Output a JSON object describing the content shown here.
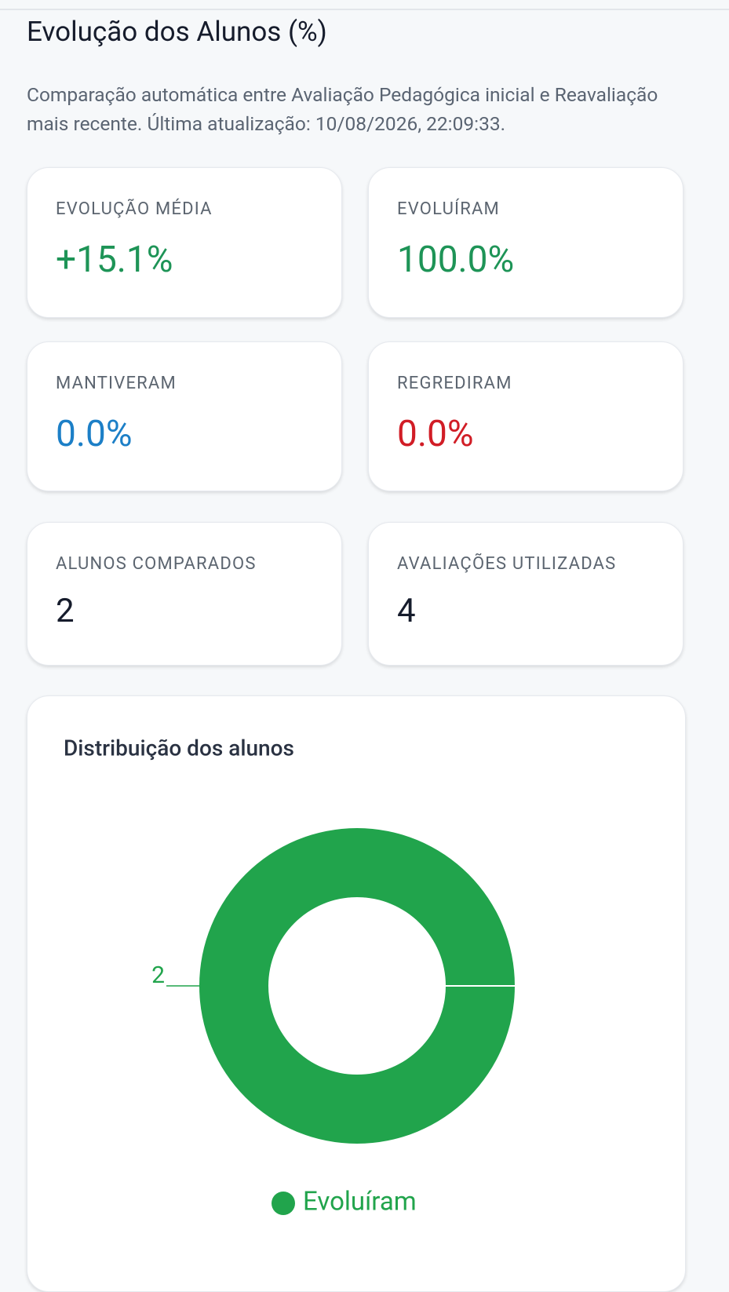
{
  "header": {
    "title": "Evolução dos Alunos (%)",
    "description": "Comparação automática entre Avaliação Pedagógica inicial e Reavaliação mais recente. Última atualização: 10/08/2026, 22:09:33."
  },
  "cards": [
    {
      "label": "EVOLUÇÃO MÉDIA",
      "value": "+15.1%"
    },
    {
      "label": "EVOLUÍRAM",
      "value": "100.0%"
    },
    {
      "label": "MANTIVERAM",
      "value": "0.0%"
    },
    {
      "label": "REGREDIRAM",
      "value": "0.0%"
    },
    {
      "label": "ALUNOS COMPARADOS",
      "value": "2"
    },
    {
      "label": "AVALIAÇÕES UTILIZADAS",
      "value": "4"
    }
  ],
  "chart_data": {
    "type": "donut",
    "title": "Distribuição dos alunos",
    "categories": [
      "Evoluíram"
    ],
    "values": [
      2
    ],
    "colors": [
      "#21a44c"
    ],
    "legend": "bottom"
  }
}
